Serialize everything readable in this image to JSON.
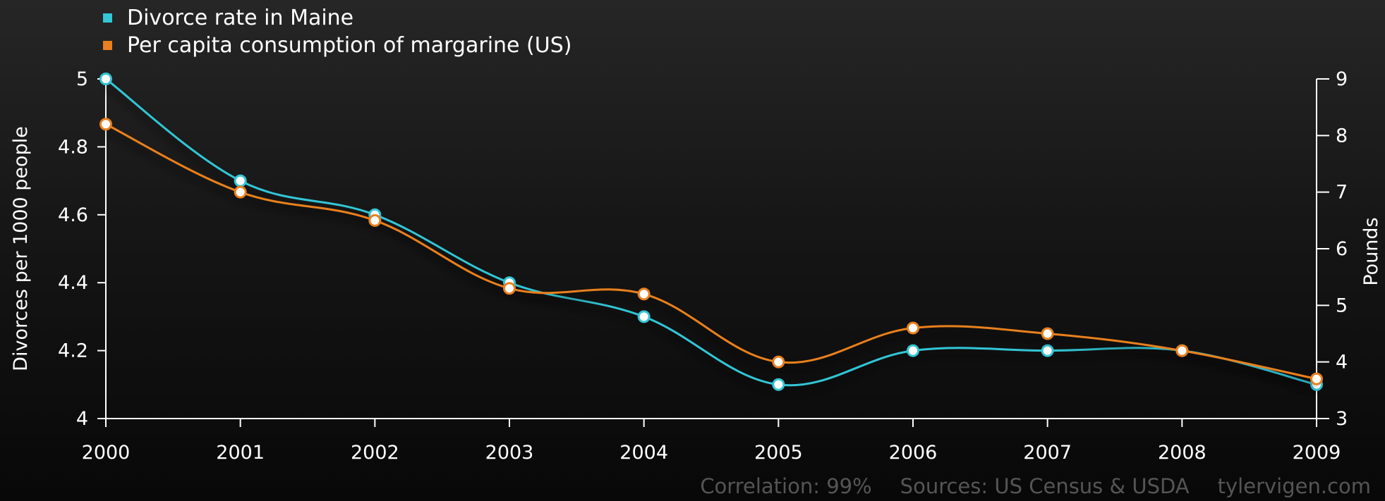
{
  "colors": {
    "divorce": "#33c6d6",
    "margarine": "#e9801e",
    "axis": "#ffffff",
    "footer": "#555555"
  },
  "chart_data": {
    "type": "line",
    "categories": [
      "2000",
      "2001",
      "2002",
      "2003",
      "2004",
      "2005",
      "2006",
      "2007",
      "2008",
      "2009"
    ],
    "series": [
      {
        "name": "Divorce rate in Maine",
        "axis": "left",
        "color": "#33c6d6",
        "values": [
          5.0,
          4.7,
          4.6,
          4.4,
          4.3,
          4.1,
          4.2,
          4.2,
          4.2,
          4.1
        ]
      },
      {
        "name": "Per capita consumption of margarine (US)",
        "axis": "right",
        "color": "#e9801e",
        "values": [
          8.2,
          7.0,
          6.5,
          5.3,
          5.2,
          4.0,
          4.6,
          4.5,
          4.2,
          3.7
        ]
      }
    ],
    "ylabel": "Divorces per 1000 people",
    "ylabel_right": "Pounds",
    "ylim": [
      4,
      5
    ],
    "ylim_right": [
      3,
      9
    ],
    "yticks": [
      "4",
      "4.2",
      "4.4",
      "4.6",
      "4.8",
      "5"
    ],
    "yticks_right": [
      "3",
      "4",
      "5",
      "6",
      "7",
      "8",
      "9"
    ],
    "grid": false,
    "legend_position": "top-left"
  },
  "footer": {
    "correlation": "Correlation: 99%",
    "sources": "Sources: US Census & USDA",
    "site": "tylervigen.com"
  }
}
